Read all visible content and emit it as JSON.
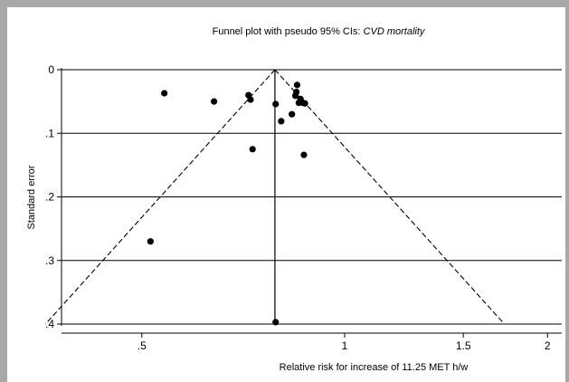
{
  "chart_data": {
    "type": "scatter",
    "title": "Funnel plot with pseudo 95% CIs: ",
    "title_emphasis": "CVD mortality",
    "xlabel": "Relative risk for increase of 11.25 MET h/w",
    "ylabel": "Standard error",
    "x_scale": "log",
    "xlim": [
      0.38,
      2.1
    ],
    "ylim": [
      0,
      0.4
    ],
    "y_reversed": true,
    "x_ticks": [
      {
        "value": 0.5,
        "label": ".5"
      },
      {
        "value": 1,
        "label": "1"
      },
      {
        "value": 1.5,
        "label": "1.5"
      },
      {
        "value": 2,
        "label": "2"
      }
    ],
    "y_ticks": [
      {
        "value": 0,
        "label": "0"
      },
      {
        "value": 0.1,
        "label": ".1"
      },
      {
        "value": 0.2,
        "label": ".2"
      },
      {
        "value": 0.3,
        "label": ".3"
      },
      {
        "value": 0.4,
        "label": ".4"
      }
    ],
    "grid": "horizontal",
    "pooled_estimate": 0.788,
    "ci_level": 0.95,
    "points": [
      {
        "x": 0.54,
        "y": 0.037
      },
      {
        "x": 0.64,
        "y": 0.05
      },
      {
        "x": 0.72,
        "y": 0.04
      },
      {
        "x": 0.725,
        "y": 0.047
      },
      {
        "x": 0.73,
        "y": 0.125
      },
      {
        "x": 0.79,
        "y": 0.054
      },
      {
        "x": 0.805,
        "y": 0.081
      },
      {
        "x": 0.835,
        "y": 0.07
      },
      {
        "x": 0.845,
        "y": 0.041
      },
      {
        "x": 0.848,
        "y": 0.035
      },
      {
        "x": 0.85,
        "y": 0.024
      },
      {
        "x": 0.855,
        "y": 0.052
      },
      {
        "x": 0.86,
        "y": 0.046
      },
      {
        "x": 0.866,
        "y": 0.052
      },
      {
        "x": 0.873,
        "y": 0.053
      },
      {
        "x": 0.87,
        "y": 0.134
      },
      {
        "x": 0.515,
        "y": 0.27
      },
      {
        "x": 0.79,
        "y": 0.397
      }
    ]
  }
}
